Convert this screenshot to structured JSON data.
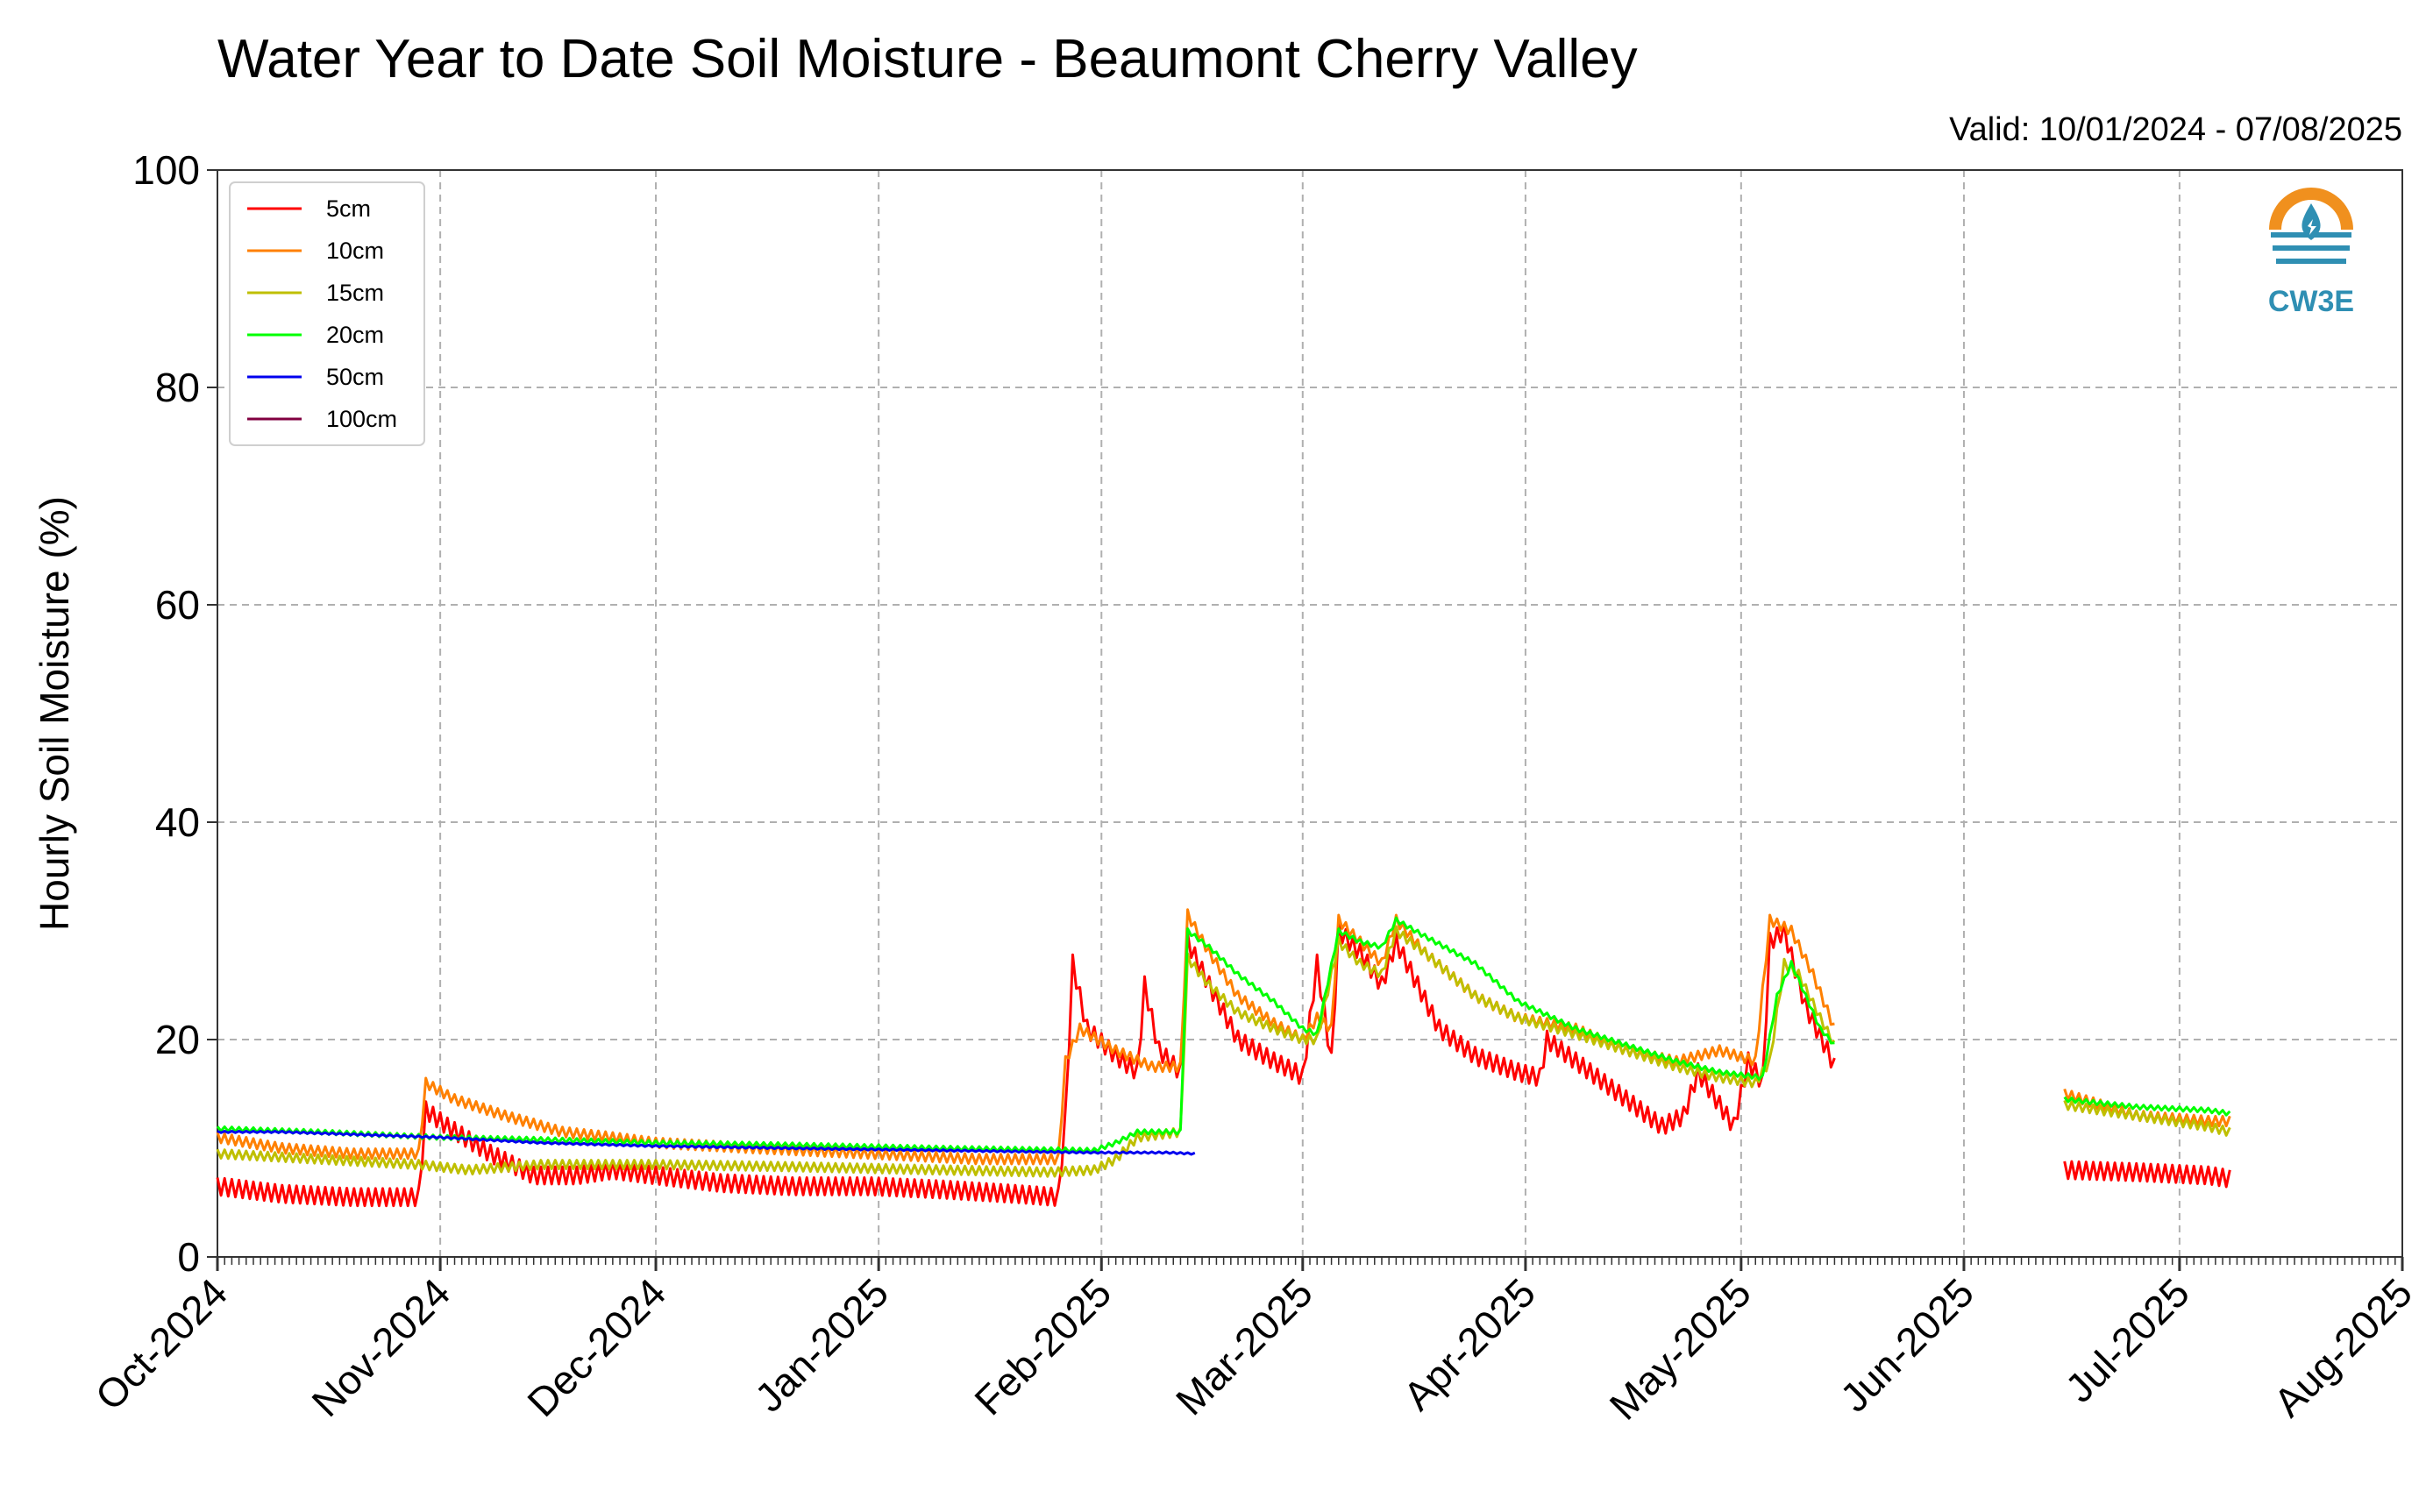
{
  "colors": {
    "5cm": "#ff0000",
    "10cm": "#ff8000",
    "15cm": "#bfbf00",
    "20cm": "#00ff00",
    "50cm": "#0000ee",
    "100cm": "#800040",
    "grid": "#b0b0b0",
    "logo_orange": "#f0901e",
    "logo_blue": "#2f8fb3"
  },
  "logo": {
    "text": "CW3E",
    "icon": "water-drop-logo-icon"
  },
  "chart_data": {
    "type": "line",
    "title": "Water Year to Date Soil Moisture - Beaumont Cherry Valley",
    "subtitle": "Valid: 10/01/2024 - 07/08/2025",
    "xlabel": "",
    "ylabel": "Hourly Soil Moisture (%)",
    "ylim": [
      0,
      100
    ],
    "yticks": [
      "0",
      "20",
      "40",
      "60",
      "80",
      "100"
    ],
    "xlim": [
      "2024-10-01",
      "2025-08-01"
    ],
    "xticks": [
      {
        "date": "2024-10-01",
        "label": "Oct-2024"
      },
      {
        "date": "2024-11-01",
        "label": "Nov-2024"
      },
      {
        "date": "2024-12-01",
        "label": "Dec-2024"
      },
      {
        "date": "2025-01-01",
        "label": "Jan-2025"
      },
      {
        "date": "2025-02-01",
        "label": "Feb-2025"
      },
      {
        "date": "2025-03-01",
        "label": "Mar-2025"
      },
      {
        "date": "2025-04-01",
        "label": "Apr-2025"
      },
      {
        "date": "2025-05-01",
        "label": "May-2025"
      },
      {
        "date": "2025-06-01",
        "label": "Jun-2025"
      },
      {
        "date": "2025-07-01",
        "label": "Jul-2025"
      },
      {
        "date": "2025-08-01",
        "label": "Aug-2025"
      }
    ],
    "grid": true,
    "legend_position": "top-left",
    "series": [
      {
        "name": "5cm",
        "segments": [
          [
            [
              "2024-10-01",
              6.5
            ],
            [
              "2024-10-10",
              5.8
            ],
            [
              "2024-10-20",
              5.5
            ],
            [
              "2024-10-29",
              5.5
            ],
            [
              "2024-10-30",
              13.5
            ],
            [
              "2024-11-02",
              12
            ],
            [
              "2024-11-08",
              9.5
            ],
            [
              "2024-11-14",
              7.5
            ],
            [
              "2024-11-20",
              7.5
            ],
            [
              "2024-11-25",
              8
            ],
            [
              "2024-12-01",
              7.5
            ],
            [
              "2024-12-10",
              6.8
            ],
            [
              "2024-12-20",
              6.5
            ],
            [
              "2024-12-31",
              6.5
            ],
            [
              "2025-01-10",
              6.2
            ],
            [
              "2025-01-20",
              5.8
            ],
            [
              "2025-01-26",
              5.5
            ],
            [
              "2025-01-27",
              13
            ],
            [
              "2025-01-28",
              27
            ],
            [
              "2025-01-30",
              21
            ],
            [
              "2025-02-03",
              18.5
            ],
            [
              "2025-02-06",
              17
            ],
            [
              "2025-02-07",
              25
            ],
            [
              "2025-02-09",
              19
            ],
            [
              "2025-02-12",
              17
            ],
            [
              "2025-02-13",
              29
            ],
            [
              "2025-02-16",
              25
            ],
            [
              "2025-02-20",
              20
            ],
            [
              "2025-02-25",
              18
            ],
            [
              "2025-02-28",
              17
            ],
            [
              "2025-03-01",
              16.5
            ],
            [
              "2025-03-03",
              27
            ],
            [
              "2025-03-05",
              18
            ],
            [
              "2025-03-06",
              30
            ],
            [
              "2025-03-09",
              28
            ],
            [
              "2025-03-12",
              25
            ],
            [
              "2025-03-14",
              29
            ],
            [
              "2025-03-17",
              25
            ],
            [
              "2025-03-20",
              21
            ],
            [
              "2025-03-25",
              18.5
            ],
            [
              "2025-03-31",
              17
            ],
            [
              "2025-04-03",
              16.5
            ],
            [
              "2025-04-04",
              20
            ],
            [
              "2025-04-08",
              18
            ],
            [
              "2025-04-12",
              16
            ],
            [
              "2025-04-16",
              14
            ],
            [
              "2025-04-20",
              12
            ],
            [
              "2025-04-23",
              13
            ],
            [
              "2025-04-25",
              17
            ],
            [
              "2025-04-28",
              14
            ],
            [
              "2025-04-30",
              12
            ],
            [
              "2025-05-02",
              18
            ],
            [
              "2025-05-04",
              16
            ],
            [
              "2025-05-05",
              29
            ],
            [
              "2025-05-07",
              30
            ],
            [
              "2025-05-10",
              23
            ],
            [
              "2025-05-13",
              19
            ],
            [
              "2025-05-14",
              17.5
            ]
          ],
          [
            [
              "2025-06-15",
              8
            ],
            [
              "2025-06-25",
              7.8
            ],
            [
              "2025-07-05",
              7.5
            ],
            [
              "2025-07-08",
              7.2
            ]
          ]
        ]
      },
      {
        "name": "10cm",
        "segments": [
          [
            [
              "2024-10-01",
              11
            ],
            [
              "2024-10-10",
              10
            ],
            [
              "2024-10-20",
              9.5
            ],
            [
              "2024-10-29",
              9.5
            ],
            [
              "2024-10-30",
              16
            ],
            [
              "2024-11-03",
              14.5
            ],
            [
              "2024-11-10",
              13
            ],
            [
              "2024-11-18",
              11.5
            ],
            [
              "2024-11-25",
              11
            ],
            [
              "2024-12-01",
              10.5
            ],
            [
              "2024-12-15",
              10
            ],
            [
              "2024-12-31",
              9.5
            ],
            [
              "2025-01-15",
              9
            ],
            [
              "2025-01-26",
              9
            ],
            [
              "2025-01-27",
              18
            ],
            [
              "2025-01-29",
              21
            ],
            [
              "2025-02-03",
              19
            ],
            [
              "2025-02-08",
              17.5
            ],
            [
              "2025-02-12",
              17.5
            ],
            [
              "2025-02-13",
              31.5
            ],
            [
              "2025-02-16",
              28
            ],
            [
              "2025-02-20",
              24
            ],
            [
              "2025-02-25",
              21.5
            ],
            [
              "2025-03-01",
              20
            ],
            [
              "2025-03-03",
              22
            ],
            [
              "2025-03-05",
              21
            ],
            [
              "2025-03-06",
              31
            ],
            [
              "2025-03-09",
              29
            ],
            [
              "2025-03-12",
              27
            ],
            [
              "2025-03-14",
              31
            ],
            [
              "2025-03-18",
              28
            ],
            [
              "2025-03-25",
              24
            ],
            [
              "2025-03-31",
              22
            ],
            [
              "2025-04-08",
              21
            ],
            [
              "2025-04-15",
              19
            ],
            [
              "2025-04-22",
              18
            ],
            [
              "2025-04-28",
              19
            ],
            [
              "2025-05-03",
              18
            ],
            [
              "2025-05-05",
              31
            ],
            [
              "2025-05-08",
              30
            ],
            [
              "2025-05-11",
              26
            ],
            [
              "2025-05-14",
              21
            ]
          ],
          [
            [
              "2025-06-15",
              15
            ],
            [
              "2025-06-25",
              13
            ],
            [
              "2025-07-05",
              12.5
            ],
            [
              "2025-07-08",
              12.5
            ]
          ]
        ]
      },
      {
        "name": "15cm",
        "segments": [
          [
            [
              "2024-10-01",
              9.5
            ],
            [
              "2024-10-15",
              9
            ],
            [
              "2024-10-29",
              8.5
            ],
            [
              "2024-11-05",
              8
            ],
            [
              "2024-11-15",
              8.5
            ],
            [
              "2024-12-01",
              8.5
            ],
            [
              "2024-12-20",
              8.3
            ],
            [
              "2025-01-10",
              8
            ],
            [
              "2025-01-25",
              7.8
            ],
            [
              "2025-01-31",
              8
            ],
            [
              "2025-02-03",
              9
            ],
            [
              "2025-02-06",
              11
            ],
            [
              "2025-02-12",
              11.5
            ],
            [
              "2025-02-13",
              27.5
            ],
            [
              "2025-02-16",
              25
            ],
            [
              "2025-02-20",
              22.5
            ],
            [
              "2025-02-25",
              21
            ],
            [
              "2025-03-01",
              20
            ],
            [
              "2025-03-03",
              20
            ],
            [
              "2025-03-06",
              29
            ],
            [
              "2025-03-09",
              27
            ],
            [
              "2025-03-12",
              26
            ],
            [
              "2025-03-14",
              30
            ],
            [
              "2025-03-18",
              28
            ],
            [
              "2025-03-25",
              24
            ],
            [
              "2025-03-31",
              22
            ],
            [
              "2025-04-08",
              20.5
            ],
            [
              "2025-04-15",
              19
            ],
            [
              "2025-04-22",
              17.5
            ],
            [
              "2025-04-28",
              16.5
            ],
            [
              "2025-05-03",
              16
            ],
            [
              "2025-05-05",
              18
            ],
            [
              "2025-05-07",
              27
            ],
            [
              "2025-05-09",
              26
            ],
            [
              "2025-05-12",
              22
            ],
            [
              "2025-05-14",
              19.5
            ]
          ],
          [
            [
              "2025-06-15",
              14
            ],
            [
              "2025-06-25",
              13
            ],
            [
              "2025-07-05",
              12
            ],
            [
              "2025-07-08",
              11.5
            ]
          ]
        ]
      },
      {
        "name": "20cm",
        "segments": [
          [
            [
              "2024-10-01",
              11.8
            ],
            [
              "2024-10-15",
              11.5
            ],
            [
              "2024-11-01",
              11
            ],
            [
              "2024-11-15",
              10.8
            ],
            [
              "2024-12-01",
              10.5
            ],
            [
              "2024-12-20",
              10.3
            ],
            [
              "2025-01-10",
              10
            ],
            [
              "2025-01-31",
              9.8
            ],
            [
              "2025-02-03",
              10.5
            ],
            [
              "2025-02-06",
              11.5
            ],
            [
              "2025-02-12",
              11.5
            ],
            [
              "2025-02-13",
              30
            ],
            [
              "2025-02-16",
              28.5
            ],
            [
              "2025-02-20",
              26
            ],
            [
              "2025-02-25",
              23.5
            ],
            [
              "2025-03-01",
              21
            ],
            [
              "2025-03-03",
              20.5
            ],
            [
              "2025-03-06",
              30
            ],
            [
              "2025-03-09",
              29
            ],
            [
              "2025-03-12",
              28.5
            ],
            [
              "2025-03-14",
              31
            ],
            [
              "2025-03-18",
              29.5
            ],
            [
              "2025-03-25",
              27
            ],
            [
              "2025-03-31",
              23.5
            ],
            [
              "2025-04-08",
              21
            ],
            [
              "2025-04-15",
              19.5
            ],
            [
              "2025-04-22",
              18
            ],
            [
              "2025-04-28",
              17
            ],
            [
              "2025-05-04",
              16.5
            ],
            [
              "2025-05-06",
              24
            ],
            [
              "2025-05-08",
              27
            ],
            [
              "2025-05-10",
              24
            ],
            [
              "2025-05-12",
              21
            ],
            [
              "2025-05-14",
              19.5
            ]
          ],
          [
            [
              "2025-06-15",
              14.5
            ],
            [
              "2025-06-25",
              13.8
            ],
            [
              "2025-07-05",
              13.5
            ],
            [
              "2025-07-08",
              13.2
            ]
          ]
        ]
      },
      {
        "name": "50cm",
        "segments": [
          [
            [
              "2024-10-01",
              11.5
            ],
            [
              "2024-10-10",
              11.5
            ],
            [
              "2024-11-01",
              11
            ],
            [
              "2024-11-15",
              10.5
            ],
            [
              "2024-12-01",
              10.2
            ],
            [
              "2024-12-20",
              10
            ],
            [
              "2025-01-10",
              9.8
            ],
            [
              "2025-01-31",
              9.6
            ],
            [
              "2025-02-10",
              9.6
            ],
            [
              "2025-02-14",
              9.5
            ]
          ]
        ]
      },
      {
        "name": "100cm",
        "segments": []
      }
    ]
  }
}
